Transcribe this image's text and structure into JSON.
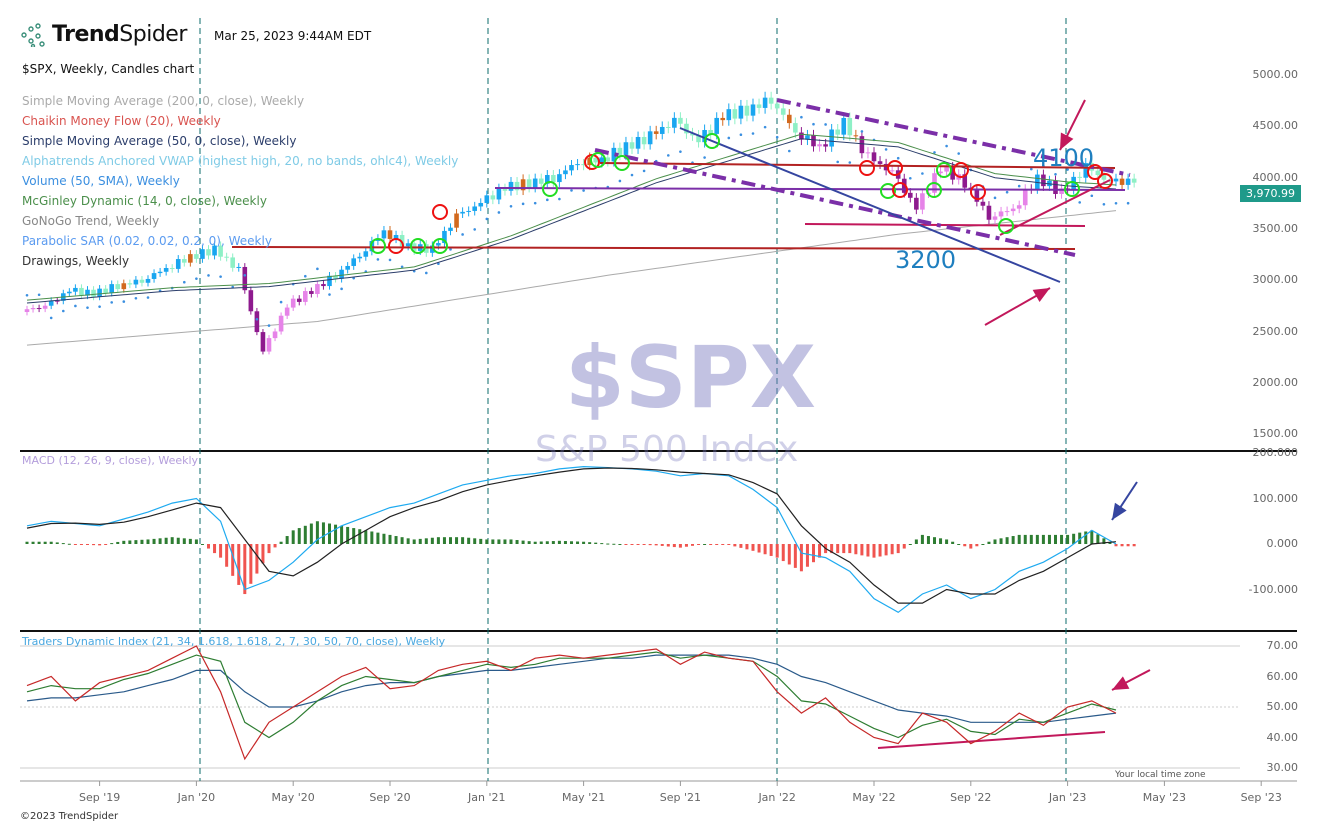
{
  "header": {
    "brand_bold": "Trend",
    "brand_light": "Spider",
    "timestamp": "Mar 25, 2023 9:44AM EDT"
  },
  "legend": [
    {
      "text": "$SPX, Weekly, Candles chart",
      "color": "#111111"
    },
    {
      "text": "Simple Moving Average (200, 0, close), Weekly",
      "color": "#aaaaaa"
    },
    {
      "text": "Chaikin Money Flow (20), Weekly",
      "color": "#d9534f"
    },
    {
      "text": "Simple Moving Average (50, 0, close), Weekly",
      "color": "#2c3e6b"
    },
    {
      "text": "Alphatrends Anchored VWAP (highest high, 20, no bands, ohlc4), Weekly",
      "color": "#7fcbe6"
    },
    {
      "text": "Volume (50, SMA), Weekly",
      "color": "#3b8fe0"
    },
    {
      "text": "McGinley Dynamic (14, 0, close), Weekly",
      "color": "#4b8f4b"
    },
    {
      "text": "GoNoGo Trend, Weekly",
      "color": "#888888"
    },
    {
      "text": "Parabolic SAR (0.02, 0.02, 0.2, 0), Weekly",
      "color": "#5b9bf0"
    },
    {
      "text": "Drawings, Weekly",
      "color": "#333333"
    }
  ],
  "watermark": {
    "symbol": "$SPX",
    "name": "S&P 500 Index"
  },
  "annotations": {
    "level_high": "4100",
    "level_low": "3200"
  },
  "price_tag": "3,970.99",
  "macd_label": "MACD (12, 26, 9, close), Weekly",
  "tdi_label": "Traders Dynamic Index (21, 34, 1.618, 1.618, 2, 7, 30, 50, 70, close), Weekly",
  "footer": "©2023 TrendSpider",
  "timezone": "Your local time zone",
  "colors": {
    "accent": "#1f9a8a",
    "divider": "#0b6b6b",
    "drawing_purple": "#7b2fa8",
    "drawing_red": "#b22222",
    "arrow": "#c2185b"
  },
  "chart_data": {
    "type": "candlestick",
    "price_axis": {
      "ticks": [
        "5000.00",
        "4500.00",
        "4000.00",
        "3500.00",
        "3000.00",
        "2500.00",
        "2000.00",
        "1500.00"
      ],
      "range": [
        1500,
        5000
      ]
    },
    "macd_axis": {
      "ticks": [
        "200.000",
        "100.000",
        "0.000",
        "-100.000"
      ],
      "range": [
        -200,
        200
      ]
    },
    "tdi_axis": {
      "ticks": [
        "70.00",
        "60.00",
        "50.00",
        "40.00",
        "30.00"
      ],
      "range": [
        30,
        70
      ]
    },
    "x_ticks": [
      "Sep '19",
      "Jan '20",
      "May '20",
      "Sep '20",
      "Jan '21",
      "May '21",
      "Sep '21",
      "Jan '22",
      "May '22",
      "Sep '22",
      "Jan '23",
      "May '23",
      "Sep '23"
    ],
    "months": [
      "Jun 19",
      "Jul 19",
      "Aug 19",
      "Sep 19",
      "Oct 19",
      "Nov 19",
      "Dec 19",
      "Jan 20",
      "Feb 20",
      "Mar 20",
      "Apr 20",
      "May 20",
      "Jun 20",
      "Jul 20",
      "Aug 20",
      "Sep 20",
      "Oct 20",
      "Nov 20",
      "Dec 20",
      "Jan 21",
      "Feb 21",
      "Mar 21",
      "Apr 21",
      "May 21",
      "Jun 21",
      "Jul 21",
      "Aug 21",
      "Sep 21",
      "Oct 21",
      "Nov 21",
      "Dec 21",
      "Jan 22",
      "Feb 22",
      "Mar 22",
      "Apr 22",
      "May 22",
      "Jun 22",
      "Jul 22",
      "Aug 22",
      "Sep 22",
      "Oct 22",
      "Nov 22",
      "Dec 22",
      "Jan 23",
      "Feb 23",
      "Mar 23"
    ],
    "close": [
      2740,
      2900,
      2870,
      2950,
      3000,
      3120,
      3230,
      3300,
      3100,
      2300,
      2750,
      2900,
      3050,
      3250,
      3480,
      3330,
      3300,
      3620,
      3750,
      3900,
      3950,
      4000,
      4150,
      4180,
      4300,
      4400,
      4550,
      4350,
      4600,
      4660,
      4766,
      4450,
      4300,
      4530,
      4200,
      4050,
      3700,
      4100,
      3950,
      3620,
      3700,
      4000,
      3850,
      4100,
      3950,
      3971
    ],
    "sma200": [
      [
        0,
        2370
      ],
      [
        12,
        2600
      ],
      [
        24,
        3050
      ],
      [
        36,
        3450
      ],
      [
        45,
        3680
      ]
    ],
    "sma50": [
      [
        0,
        2780
      ],
      [
        6,
        2900
      ],
      [
        10,
        2940
      ],
      [
        16,
        3100
      ],
      [
        20,
        3400
      ],
      [
        26,
        3950
      ],
      [
        32,
        4380
      ],
      [
        36,
        4300
      ],
      [
        40,
        4000
      ],
      [
        43,
        3920
      ],
      [
        45,
        3890
      ]
    ],
    "macd": [
      40,
      50,
      45,
      40,
      55,
      70,
      90,
      100,
      50,
      -100,
      -80,
      -40,
      10,
      40,
      60,
      80,
      90,
      110,
      130,
      140,
      150,
      155,
      165,
      170,
      168,
      165,
      160,
      150,
      155,
      150,
      120,
      80,
      -20,
      -30,
      -60,
      -120,
      -150,
      -110,
      -90,
      -120,
      -100,
      -60,
      -40,
      -10,
      30,
      0
    ],
    "macd_signal": [
      35,
      45,
      46,
      43,
      48,
      60,
      75,
      90,
      80,
      10,
      -60,
      -70,
      -40,
      0,
      30,
      60,
      80,
      95,
      115,
      130,
      140,
      150,
      158,
      165,
      167,
      166,
      163,
      158,
      155,
      152,
      135,
      110,
      40,
      -10,
      -40,
      -90,
      -130,
      -130,
      -100,
      -110,
      -110,
      -80,
      -60,
      -30,
      0,
      5
    ],
    "tdi_rsi": [
      57,
      60,
      52,
      58,
      60,
      62,
      66,
      70,
      55,
      33,
      45,
      50,
      55,
      60,
      63,
      56,
      57,
      62,
      64,
      65,
      62,
      66,
      67,
      66,
      67,
      68,
      69,
      64,
      68,
      66,
      65,
      55,
      48,
      53,
      45,
      40,
      38,
      48,
      45,
      38,
      42,
      48,
      44,
      50,
      52,
      48
    ],
    "tdi_signal": [
      55,
      57,
      56,
      56,
      59,
      61,
      64,
      67,
      65,
      45,
      40,
      45,
      52,
      57,
      60,
      59,
      58,
      60,
      62,
      64,
      63,
      64,
      66,
      66,
      66,
      67,
      68,
      66,
      67,
      66,
      65,
      60,
      52,
      51,
      47,
      43,
      40,
      44,
      46,
      42,
      41,
      46,
      45,
      48,
      51,
      49
    ],
    "tdi_base": [
      52,
      53,
      53,
      54,
      55,
      57,
      59,
      62,
      62,
      55,
      50,
      50,
      52,
      55,
      57,
      58,
      58,
      60,
      61,
      62,
      62,
      63,
      64,
      65,
      66,
      66,
      67,
      67,
      67,
      67,
      66,
      64,
      60,
      58,
      55,
      52,
      49,
      48,
      47,
      45,
      45,
      45,
      45,
      46,
      47,
      48
    ]
  }
}
